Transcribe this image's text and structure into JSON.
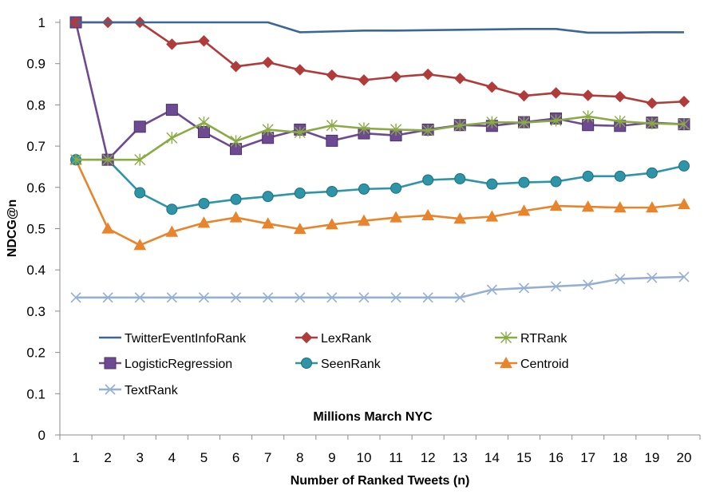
{
  "chart_data": {
    "type": "line",
    "title": "",
    "annotation": "Millions March NYC",
    "xlabel": "Number of Ranked Tweets (n)",
    "ylabel": "NDCG@n",
    "x": [
      1,
      2,
      3,
      4,
      5,
      6,
      7,
      8,
      9,
      10,
      11,
      12,
      13,
      14,
      15,
      16,
      17,
      18,
      19,
      20
    ],
    "ylim": [
      0,
      1
    ],
    "yticks": [
      "0",
      "0.1",
      "0.2",
      "0.3",
      "0.4",
      "0.5",
      "0.6",
      "0.7",
      "0.8",
      "0.9",
      "1"
    ],
    "grid": false,
    "legend_position": "inside-lower",
    "series": [
      {
        "name": "TwitterEventInfoRank",
        "color": "#3a6795",
        "marker": "none",
        "values": [
          1,
          1,
          1,
          1,
          1,
          1,
          1,
          0.976,
          0.978,
          0.98,
          0.98,
          0.981,
          0.982,
          0.983,
          0.984,
          0.984,
          0.975,
          0.975,
          0.976,
          0.976
        ]
      },
      {
        "name": "LexRank",
        "color": "#b13b3b",
        "marker": "diamond",
        "values": [
          1,
          1,
          1,
          0.947,
          0.955,
          0.893,
          0.903,
          0.885,
          0.872,
          0.86,
          0.868,
          0.874,
          0.864,
          0.843,
          0.822,
          0.829,
          0.823,
          0.82,
          0.804,
          0.808
        ]
      },
      {
        "name": "RTRank",
        "color": "#8aaa44",
        "marker": "star",
        "values": [
          0.667,
          0.667,
          0.667,
          0.72,
          0.757,
          0.712,
          0.74,
          0.733,
          0.75,
          0.743,
          0.74,
          0.738,
          0.75,
          0.758,
          0.757,
          0.762,
          0.772,
          0.76,
          0.755,
          0.753
        ]
      },
      {
        "name": "LogisticRegression",
        "color": "#6e4a92",
        "marker": "square",
        "values": [
          1,
          0.667,
          0.747,
          0.788,
          0.734,
          0.693,
          0.72,
          0.74,
          0.713,
          0.731,
          0.726,
          0.74,
          0.751,
          0.749,
          0.758,
          0.767,
          0.751,
          0.749,
          0.757,
          0.753
        ]
      },
      {
        "name": "SeenRank",
        "color": "#2e95a8",
        "marker": "circle",
        "values": [
          0.667,
          0.667,
          0.587,
          0.547,
          0.561,
          0.571,
          0.578,
          0.586,
          0.59,
          0.596,
          0.598,
          0.618,
          0.621,
          0.608,
          0.612,
          0.614,
          0.627,
          0.627,
          0.635,
          0.652
        ]
      },
      {
        "name": "Centroid",
        "color": "#e8842c",
        "marker": "triangle",
        "values": [
          0.667,
          0.5,
          0.46,
          0.492,
          0.514,
          0.527,
          0.512,
          0.499,
          0.51,
          0.519,
          0.527,
          0.532,
          0.524,
          0.529,
          0.543,
          0.555,
          0.553,
          0.551,
          0.551,
          0.559
        ]
      },
      {
        "name": "TextRank",
        "color": "#95aed3",
        "marker": "x",
        "values": [
          0.333,
          0.333,
          0.333,
          0.333,
          0.333,
          0.333,
          0.333,
          0.333,
          0.333,
          0.333,
          0.333,
          0.333,
          0.333,
          0.352,
          0.356,
          0.36,
          0.364,
          0.378,
          0.381,
          0.383
        ]
      }
    ]
  }
}
